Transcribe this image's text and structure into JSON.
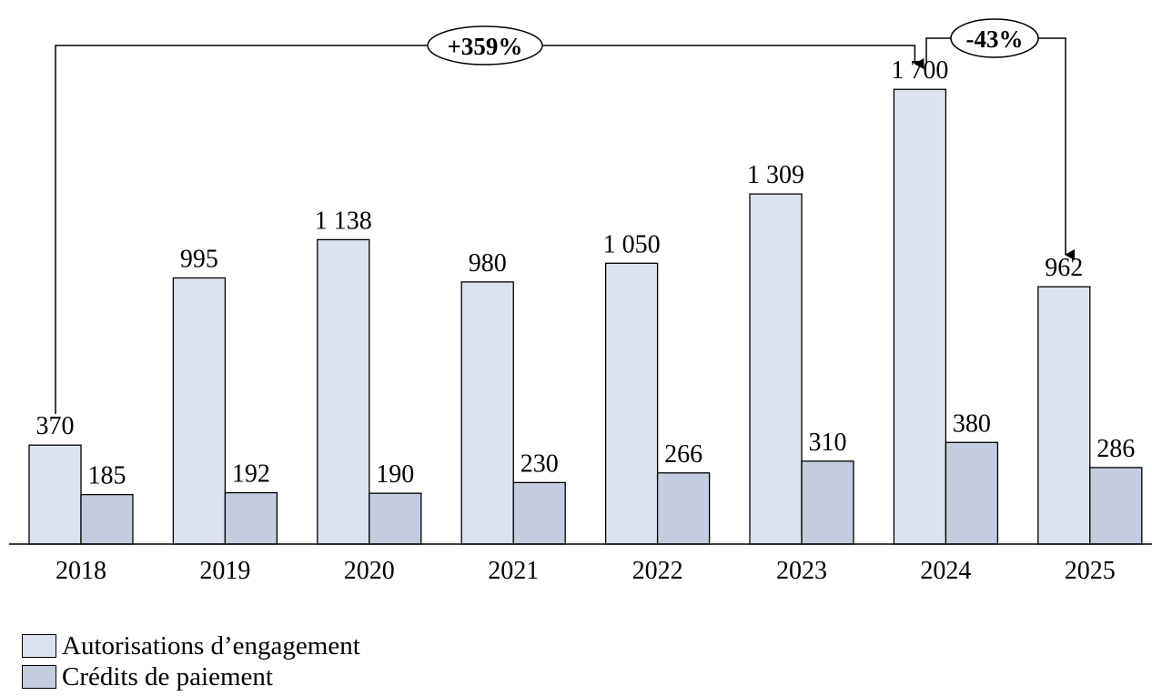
{
  "chart_data": {
    "type": "bar",
    "categories": [
      "2018",
      "2019",
      "2020",
      "2021",
      "2022",
      "2023",
      "2024",
      "2025"
    ],
    "series": [
      {
        "name": "Autorisations d’engagement",
        "values": [
          370,
          995,
          1138,
          980,
          1050,
          1309,
          1700,
          962
        ],
        "labels": [
          "370",
          "995",
          "1 138",
          "980",
          "1 050",
          "1 309",
          "1 700",
          "962"
        ],
        "color": "#dde3ee"
      },
      {
        "name": "Crédits de paiement",
        "values": [
          185,
          192,
          190,
          230,
          266,
          310,
          380,
          286
        ],
        "labels": [
          "185",
          "192",
          "190",
          "230",
          "266",
          "310",
          "380",
          "286"
        ],
        "color": "#c3cddf"
      }
    ],
    "ylim": [
      0,
      1830
    ],
    "grid": false,
    "legend_position": "bottom-left",
    "annotations": [
      {
        "text": "+359%",
        "from_category": "2018",
        "to_category": "2024"
      },
      {
        "text": "-43%",
        "from_category": "2024",
        "to_category": "2025"
      }
    ]
  }
}
